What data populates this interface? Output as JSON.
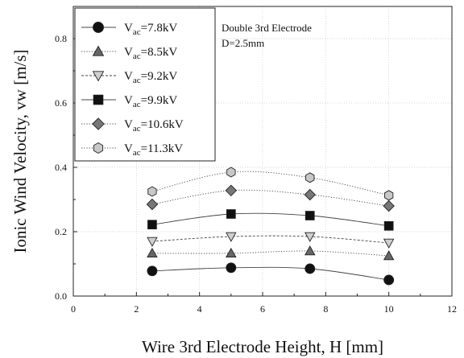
{
  "chart_data": {
    "type": "scatter",
    "title": "",
    "xlabel": "Wire 3rd Electrode Height, H [mm]",
    "ylabel": "Ionic Wind Velocity, vw [m/s]",
    "xlim": [
      0,
      12
    ],
    "ylim": [
      0.0,
      0.9
    ],
    "xticks": [
      "0",
      "2",
      "4",
      "6",
      "8",
      "10",
      "12"
    ],
    "yticks": [
      "0.0",
      "0.2",
      "0.4",
      "0.6",
      "0.8"
    ],
    "grid": true,
    "legend_position": "top-left",
    "annotations": [
      "Double 3rd Electrode",
      "D=2.5mm"
    ],
    "x": [
      2.5,
      5,
      7.5,
      10
    ],
    "series": [
      {
        "name": "V",
        "sub": "ac",
        "suffix": "=7.8kV",
        "marker": "circle",
        "color": "#111111",
        "line": "solid",
        "values": [
          0.078,
          0.088,
          0.085,
          0.05
        ]
      },
      {
        "name": "V",
        "sub": "ac",
        "suffix": "=8.5kV",
        "marker": "triangle-up",
        "color": "#666666",
        "line": "dotted",
        "values": [
          0.133,
          0.133,
          0.14,
          0.125
        ]
      },
      {
        "name": "V",
        "sub": "ac",
        "suffix": "=9.2kV",
        "marker": "triangle-down",
        "color": "#cfcfcf",
        "line": "dashed",
        "values": [
          0.17,
          0.185,
          0.185,
          0.165
        ]
      },
      {
        "name": "V",
        "sub": "ac",
        "suffix": "=9.9kV",
        "marker": "square",
        "color": "#111111",
        "line": "solid",
        "values": [
          0.222,
          0.255,
          0.25,
          0.218
        ]
      },
      {
        "name": "V",
        "sub": "ac",
        "suffix": "=10.6kV",
        "marker": "diamond",
        "color": "#777777",
        "line": "dotted",
        "values": [
          0.285,
          0.328,
          0.315,
          0.28
        ]
      },
      {
        "name": "V",
        "sub": "ac",
        "suffix": "=11.3kV",
        "marker": "hexagon",
        "color": "#c8c8c8",
        "line": "dotted",
        "values": [
          0.325,
          0.385,
          0.368,
          0.313
        ]
      }
    ]
  }
}
